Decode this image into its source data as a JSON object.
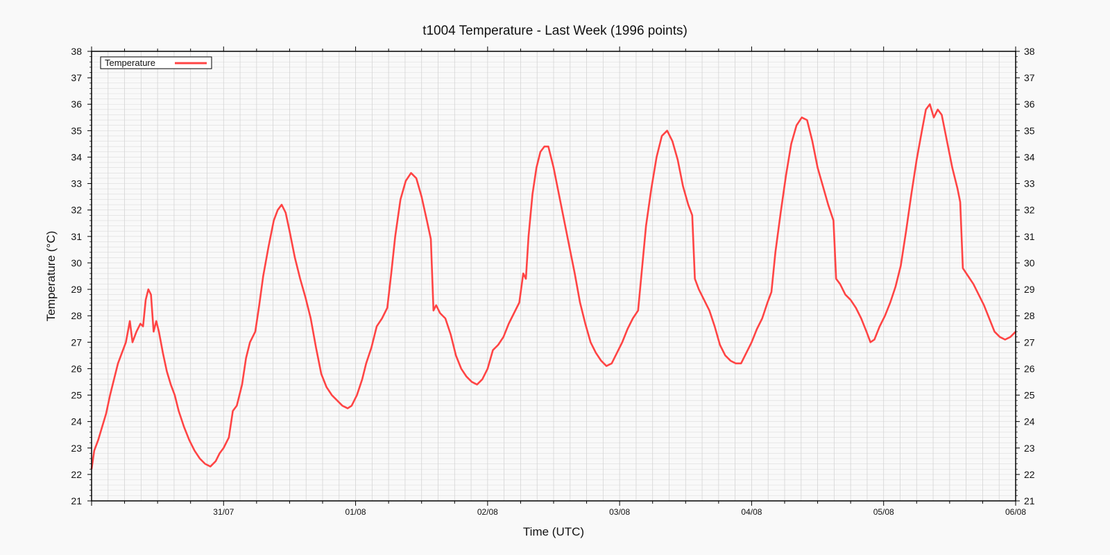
{
  "chart_data": {
    "type": "line",
    "title": "t1004 Temperature - Last Week (1996 points)",
    "xlabel": "Time (UTC)",
    "ylabel": "Temperature (°C)",
    "ylim": [
      21,
      38
    ],
    "y_ticks": [
      21,
      22,
      23,
      24,
      25,
      26,
      27,
      28,
      29,
      30,
      31,
      32,
      33,
      34,
      35,
      36,
      37,
      38
    ],
    "xlim_days": [
      -1,
      6
    ],
    "x_ticks": [
      {
        "day": 0,
        "label": "31/07"
      },
      {
        "day": 1,
        "label": "01/08"
      },
      {
        "day": 2,
        "label": "02/08"
      },
      {
        "day": 3,
        "label": "03/08"
      },
      {
        "day": 4,
        "label": "04/08"
      },
      {
        "day": 5,
        "label": "05/08"
      },
      {
        "day": 6,
        "label": "06/08"
      }
    ],
    "grid": true,
    "legend": {
      "position": "top-left",
      "label": "Temperature"
    },
    "series": [
      {
        "name": "Temperature",
        "color": "#ff4444",
        "points": [
          [
            -1.0,
            22.2
          ],
          [
            -0.98,
            22.9
          ],
          [
            -0.95,
            23.3
          ],
          [
            -0.92,
            23.8
          ],
          [
            -0.89,
            24.3
          ],
          [
            -0.86,
            25.0
          ],
          [
            -0.83,
            25.6
          ],
          [
            -0.8,
            26.2
          ],
          [
            -0.77,
            26.6
          ],
          [
            -0.74,
            27.0
          ],
          [
            -0.71,
            27.8
          ],
          [
            -0.69,
            27.0
          ],
          [
            -0.66,
            27.4
          ],
          [
            -0.63,
            27.7
          ],
          [
            -0.61,
            27.6
          ],
          [
            -0.59,
            28.6
          ],
          [
            -0.57,
            29.0
          ],
          [
            -0.55,
            28.8
          ],
          [
            -0.53,
            27.4
          ],
          [
            -0.51,
            27.8
          ],
          [
            -0.49,
            27.4
          ],
          [
            -0.46,
            26.6
          ],
          [
            -0.43,
            25.9
          ],
          [
            -0.4,
            25.4
          ],
          [
            -0.37,
            25.0
          ],
          [
            -0.34,
            24.4
          ],
          [
            -0.3,
            23.8
          ],
          [
            -0.26,
            23.3
          ],
          [
            -0.22,
            22.9
          ],
          [
            -0.18,
            22.6
          ],
          [
            -0.14,
            22.4
          ],
          [
            -0.1,
            22.3
          ],
          [
            -0.06,
            22.5
          ],
          [
            -0.03,
            22.8
          ],
          [
            0.0,
            23.0
          ],
          [
            0.04,
            23.4
          ],
          [
            0.07,
            24.4
          ],
          [
            0.1,
            24.6
          ],
          [
            0.14,
            25.4
          ],
          [
            0.17,
            26.4
          ],
          [
            0.2,
            27.0
          ],
          [
            0.24,
            27.4
          ],
          [
            0.27,
            28.4
          ],
          [
            0.3,
            29.5
          ],
          [
            0.34,
            30.6
          ],
          [
            0.38,
            31.6
          ],
          [
            0.41,
            32.0
          ],
          [
            0.44,
            32.2
          ],
          [
            0.47,
            31.9
          ],
          [
            0.5,
            31.2
          ],
          [
            0.54,
            30.2
          ],
          [
            0.58,
            29.4
          ],
          [
            0.62,
            28.7
          ],
          [
            0.66,
            27.9
          ],
          [
            0.7,
            26.8
          ],
          [
            0.74,
            25.8
          ],
          [
            0.78,
            25.3
          ],
          [
            0.82,
            25.0
          ],
          [
            0.86,
            24.8
          ],
          [
            0.9,
            24.6
          ],
          [
            0.94,
            24.5
          ],
          [
            0.97,
            24.6
          ],
          [
            1.01,
            25.0
          ],
          [
            1.05,
            25.6
          ],
          [
            1.08,
            26.2
          ],
          [
            1.12,
            26.8
          ],
          [
            1.16,
            27.6
          ],
          [
            1.2,
            27.9
          ],
          [
            1.24,
            28.3
          ],
          [
            1.27,
            29.6
          ],
          [
            1.3,
            31.0
          ],
          [
            1.34,
            32.4
          ],
          [
            1.38,
            33.1
          ],
          [
            1.42,
            33.4
          ],
          [
            1.46,
            33.2
          ],
          [
            1.5,
            32.5
          ],
          [
            1.54,
            31.6
          ],
          [
            1.57,
            30.9
          ],
          [
            1.59,
            28.2
          ],
          [
            1.61,
            28.4
          ],
          [
            1.64,
            28.1
          ],
          [
            1.68,
            27.9
          ],
          [
            1.72,
            27.3
          ],
          [
            1.76,
            26.5
          ],
          [
            1.8,
            26.0
          ],
          [
            1.84,
            25.7
          ],
          [
            1.88,
            25.5
          ],
          [
            1.92,
            25.4
          ],
          [
            1.96,
            25.6
          ],
          [
            2.0,
            26.0
          ],
          [
            2.04,
            26.7
          ],
          [
            2.08,
            26.9
          ],
          [
            2.12,
            27.2
          ],
          [
            2.16,
            27.7
          ],
          [
            2.2,
            28.1
          ],
          [
            2.24,
            28.5
          ],
          [
            2.27,
            29.6
          ],
          [
            2.29,
            29.4
          ],
          [
            2.31,
            31.0
          ],
          [
            2.34,
            32.6
          ],
          [
            2.37,
            33.6
          ],
          [
            2.4,
            34.2
          ],
          [
            2.43,
            34.4
          ],
          [
            2.46,
            34.4
          ],
          [
            2.5,
            33.6
          ],
          [
            2.54,
            32.6
          ],
          [
            2.58,
            31.6
          ],
          [
            2.62,
            30.6
          ],
          [
            2.66,
            29.6
          ],
          [
            2.7,
            28.5
          ],
          [
            2.74,
            27.7
          ],
          [
            2.78,
            27.0
          ],
          [
            2.82,
            26.6
          ],
          [
            2.86,
            26.3
          ],
          [
            2.9,
            26.1
          ],
          [
            2.94,
            26.2
          ],
          [
            2.98,
            26.6
          ],
          [
            3.02,
            27.0
          ],
          [
            3.06,
            27.5
          ],
          [
            3.1,
            27.9
          ],
          [
            3.14,
            28.2
          ],
          [
            3.17,
            29.8
          ],
          [
            3.2,
            31.4
          ],
          [
            3.24,
            32.8
          ],
          [
            3.28,
            34.0
          ],
          [
            3.32,
            34.8
          ],
          [
            3.36,
            35.0
          ],
          [
            3.4,
            34.6
          ],
          [
            3.44,
            33.9
          ],
          [
            3.48,
            32.9
          ],
          [
            3.52,
            32.2
          ],
          [
            3.55,
            31.8
          ],
          [
            3.57,
            29.4
          ],
          [
            3.6,
            29.0
          ],
          [
            3.64,
            28.6
          ],
          [
            3.68,
            28.2
          ],
          [
            3.72,
            27.6
          ],
          [
            3.76,
            26.9
          ],
          [
            3.8,
            26.5
          ],
          [
            3.84,
            26.3
          ],
          [
            3.88,
            26.2
          ],
          [
            3.92,
            26.2
          ],
          [
            3.96,
            26.6
          ],
          [
            4.0,
            27.0
          ],
          [
            4.04,
            27.5
          ],
          [
            4.08,
            27.9
          ],
          [
            4.12,
            28.5
          ],
          [
            4.15,
            28.9
          ],
          [
            4.18,
            30.4
          ],
          [
            4.22,
            31.9
          ],
          [
            4.26,
            33.3
          ],
          [
            4.3,
            34.5
          ],
          [
            4.34,
            35.2
          ],
          [
            4.38,
            35.5
          ],
          [
            4.42,
            35.4
          ],
          [
            4.46,
            34.6
          ],
          [
            4.5,
            33.6
          ],
          [
            4.54,
            32.9
          ],
          [
            4.58,
            32.2
          ],
          [
            4.62,
            31.6
          ],
          [
            4.64,
            29.4
          ],
          [
            4.67,
            29.2
          ],
          [
            4.71,
            28.8
          ],
          [
            4.75,
            28.6
          ],
          [
            4.79,
            28.3
          ],
          [
            4.83,
            27.9
          ],
          [
            4.87,
            27.4
          ],
          [
            4.9,
            27.0
          ],
          [
            4.93,
            27.1
          ],
          [
            4.97,
            27.6
          ],
          [
            5.01,
            28.0
          ],
          [
            5.05,
            28.5
          ],
          [
            5.09,
            29.1
          ],
          [
            5.13,
            29.9
          ],
          [
            5.17,
            31.2
          ],
          [
            5.21,
            32.6
          ],
          [
            5.25,
            33.9
          ],
          [
            5.29,
            35.0
          ],
          [
            5.32,
            35.8
          ],
          [
            5.35,
            36.0
          ],
          [
            5.38,
            35.5
          ],
          [
            5.41,
            35.8
          ],
          [
            5.44,
            35.6
          ],
          [
            5.48,
            34.6
          ],
          [
            5.52,
            33.6
          ],
          [
            5.56,
            32.8
          ],
          [
            5.58,
            32.3
          ],
          [
            5.6,
            29.8
          ],
          [
            5.64,
            29.5
          ],
          [
            5.68,
            29.2
          ],
          [
            5.72,
            28.8
          ],
          [
            5.76,
            28.4
          ],
          [
            5.8,
            27.9
          ],
          [
            5.84,
            27.4
          ],
          [
            5.88,
            27.2
          ],
          [
            5.92,
            27.1
          ],
          [
            5.96,
            27.2
          ],
          [
            6.0,
            27.4
          ]
        ]
      }
    ]
  }
}
